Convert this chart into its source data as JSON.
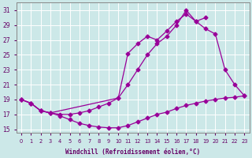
{
  "xlabel": "Windchill (Refroidissement éolien,°C)",
  "bg_color": "#cce8e8",
  "line_color": "#990099",
  "grid_color": "#ffffff",
  "xlim": [
    -0.5,
    23.5
  ],
  "ylim": [
    14.5,
    32
  ],
  "yticks": [
    15,
    17,
    19,
    21,
    23,
    25,
    27,
    29,
    31
  ],
  "xticks": [
    0,
    1,
    2,
    3,
    4,
    5,
    6,
    7,
    8,
    9,
    10,
    11,
    12,
    13,
    14,
    15,
    16,
    17,
    18,
    19,
    20,
    21,
    22,
    23
  ],
  "curve_long_x": [
    0,
    1,
    2,
    3,
    4,
    5,
    6,
    7,
    8,
    9,
    10,
    11,
    12,
    13,
    14,
    15,
    16,
    17,
    18,
    19
  ],
  "curve_long_y": [
    19,
    18.5,
    17.5,
    17.2,
    17.0,
    17.0,
    17.2,
    17.5,
    18.0,
    18.5,
    19.2,
    21.0,
    23.0,
    25.0,
    26.5,
    27.5,
    29.0,
    31.0,
    29.5,
    30.0
  ],
  "curve_triangle_x": [
    0,
    1,
    2,
    3,
    10,
    11,
    12,
    13,
    14,
    15,
    16,
    17,
    18,
    19,
    20,
    21,
    22,
    23
  ],
  "curve_triangle_y": [
    19,
    18.5,
    17.5,
    17.2,
    19.2,
    25.2,
    26.5,
    27.5,
    27.0,
    28.2,
    29.5,
    30.5,
    29.5,
    28.5,
    27.8,
    23.0,
    21.0,
    19.5
  ],
  "curve_flat_x": [
    0,
    1,
    2,
    3,
    4,
    5,
    6,
    7,
    8,
    9,
    10,
    11,
    12,
    13,
    14,
    15,
    16,
    17,
    18,
    19,
    20,
    21,
    22,
    23
  ],
  "curve_flat_y": [
    19,
    18.5,
    17.5,
    17.2,
    16.8,
    16.3,
    15.8,
    15.5,
    15.3,
    15.2,
    15.2,
    15.5,
    16.0,
    16.5,
    17.0,
    17.3,
    17.8,
    18.2,
    18.5,
    18.8,
    19.0,
    19.2,
    19.3,
    19.5
  ]
}
